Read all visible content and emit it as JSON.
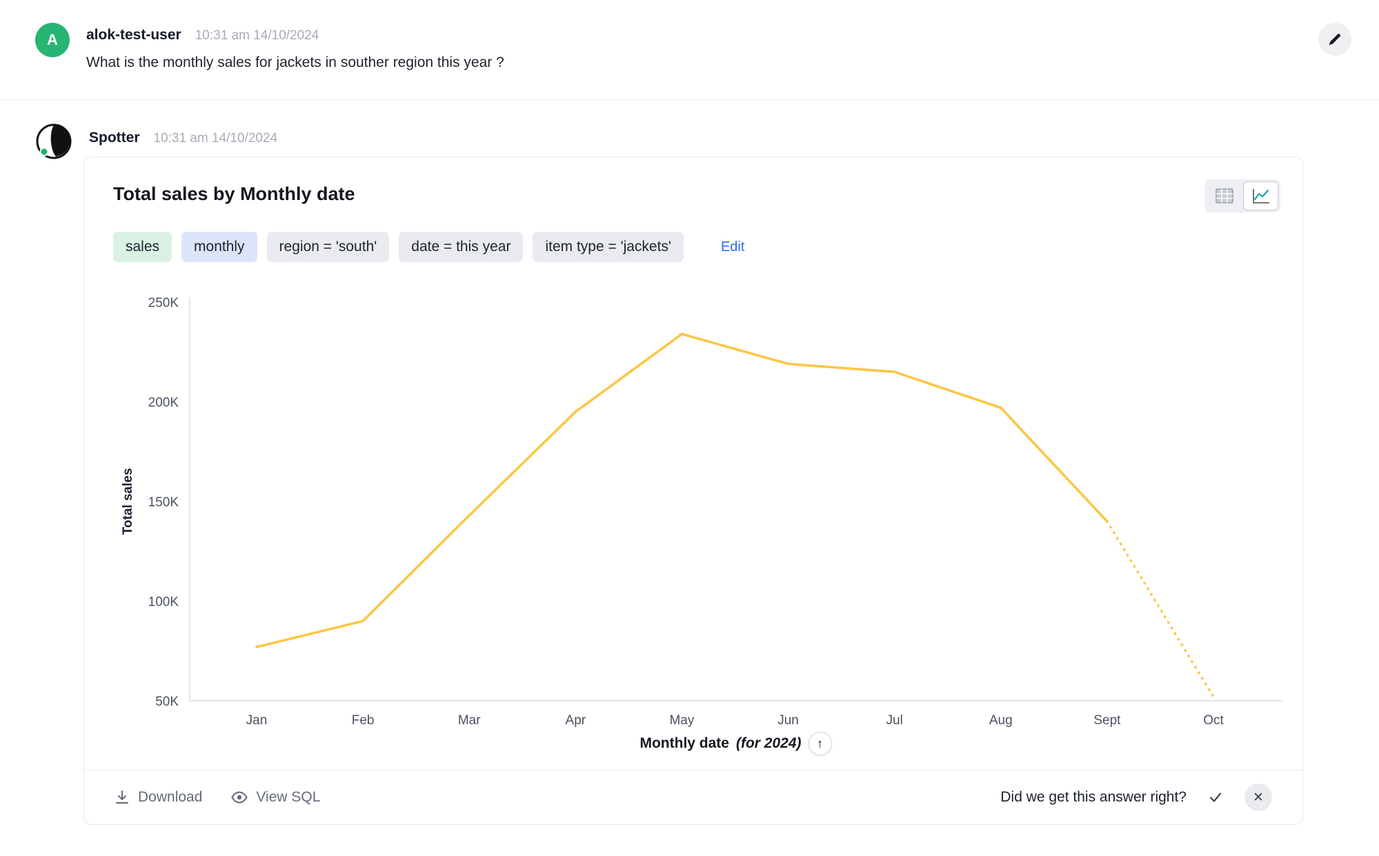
{
  "theme": {
    "avatar_green": "#26b573",
    "link_blue": "#2c6bed",
    "line_yellow": "#fcc542"
  },
  "user_message": {
    "avatar_initial": "A",
    "username": "alok-test-user",
    "timestamp": "10:31 am 14/10/2024",
    "text": "What is the monthly sales for jackets in souther region this year ?"
  },
  "bot": {
    "name": "Spotter",
    "timestamp": "10:31 am 14/10/2024"
  },
  "answer_card": {
    "title": "Total sales by Monthly date",
    "chips": [
      {
        "label": "sales",
        "type": "green"
      },
      {
        "label": "monthly",
        "type": "blue"
      },
      {
        "label": "region = 'south'",
        "type": "gray"
      },
      {
        "label": "date = this year",
        "type": "gray"
      },
      {
        "label": "item type = 'jackets'",
        "type": "gray"
      }
    ],
    "edit_label": "Edit",
    "x_axis_title": "Monthly date",
    "x_axis_suffix": "(for 2024)",
    "sort_arrow_glyph": "↑",
    "footer": {
      "download_label": "Download",
      "view_sql_label": "View SQL",
      "feedback_question": "Did we get this answer right?",
      "close_glyph": "✕"
    }
  },
  "chart_data": {
    "type": "line",
    "title": "Total sales by Monthly date",
    "x": [
      "Jan",
      "Feb",
      "Mar",
      "Apr",
      "May",
      "Jun",
      "Jul",
      "Aug",
      "Sept",
      "Oct"
    ],
    "series": [
      {
        "name": "Total sales",
        "values": [
          77000,
          90000,
          143000,
          195000,
          234000,
          219000,
          215000,
          197000,
          140000,
          52000
        ]
      }
    ],
    "xlabel": "Monthly date (for 2024)",
    "ylabel": "Total sales",
    "ylim": [
      50000,
      250000
    ],
    "yticks": [
      {
        "value": 50000,
        "label": "50K"
      },
      {
        "value": 100000,
        "label": "100K"
      },
      {
        "value": 150000,
        "label": "150K"
      },
      {
        "value": 200000,
        "label": "200K"
      },
      {
        "value": 250000,
        "label": "250K"
      }
    ],
    "line_color": "#fcc542",
    "dashed_from_index": 8,
    "grid": false,
    "legend": "none"
  }
}
